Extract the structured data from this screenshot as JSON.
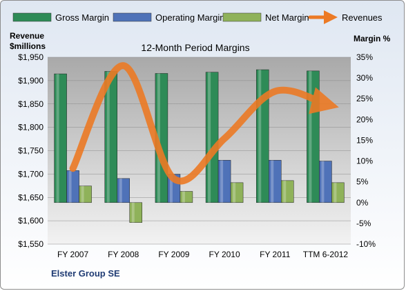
{
  "chart_data": {
    "type": "bar",
    "title": "12-Month Period Margins",
    "company": "Elster Group SE",
    "categories": [
      "FY 2007",
      "FY 2008",
      "FY 2009",
      "FY 2010",
      "FY 2011",
      "TTM 6-2012"
    ],
    "left_axis": {
      "label_line1": "Revenue",
      "label_line2": "$millions",
      "ylim": [
        1550,
        1950
      ],
      "ticks": [
        "$1,550",
        "$1,600",
        "$1,650",
        "$1,700",
        "$1,750",
        "$1,800",
        "$1,850",
        "$1,900",
        "$1,950"
      ]
    },
    "right_axis": {
      "label": "Margin %",
      "ylim": [
        -10,
        35
      ],
      "ticks": [
        "-10%",
        "-5%",
        "0%",
        "5%",
        "10%",
        "15%",
        "20%",
        "25%",
        "30%",
        "35%"
      ]
    },
    "series": [
      {
        "name": "Gross Margin",
        "type": "bar",
        "axis": "right",
        "color": "#2e8b57",
        "values": [
          31.0,
          31.6,
          31.1,
          31.4,
          32.0,
          31.7
        ]
      },
      {
        "name": "Operating Margin",
        "type": "bar",
        "axis": "right",
        "color": "#4f72b8",
        "values": [
          7.7,
          5.8,
          6.8,
          10.2,
          10.2,
          10.0
        ]
      },
      {
        "name": "Net Margin",
        "type": "bar",
        "axis": "right",
        "color": "#8fb25a",
        "values": [
          4.0,
          -4.8,
          2.7,
          4.8,
          5.3,
          4.8
        ]
      },
      {
        "name": "Revenues",
        "type": "line",
        "axis": "left",
        "color": "#ec7a25",
        "values": [
          1712,
          1932,
          1690,
          1776,
          1877,
          1850
        ]
      }
    ],
    "grid": true,
    "legend_position": "top"
  }
}
